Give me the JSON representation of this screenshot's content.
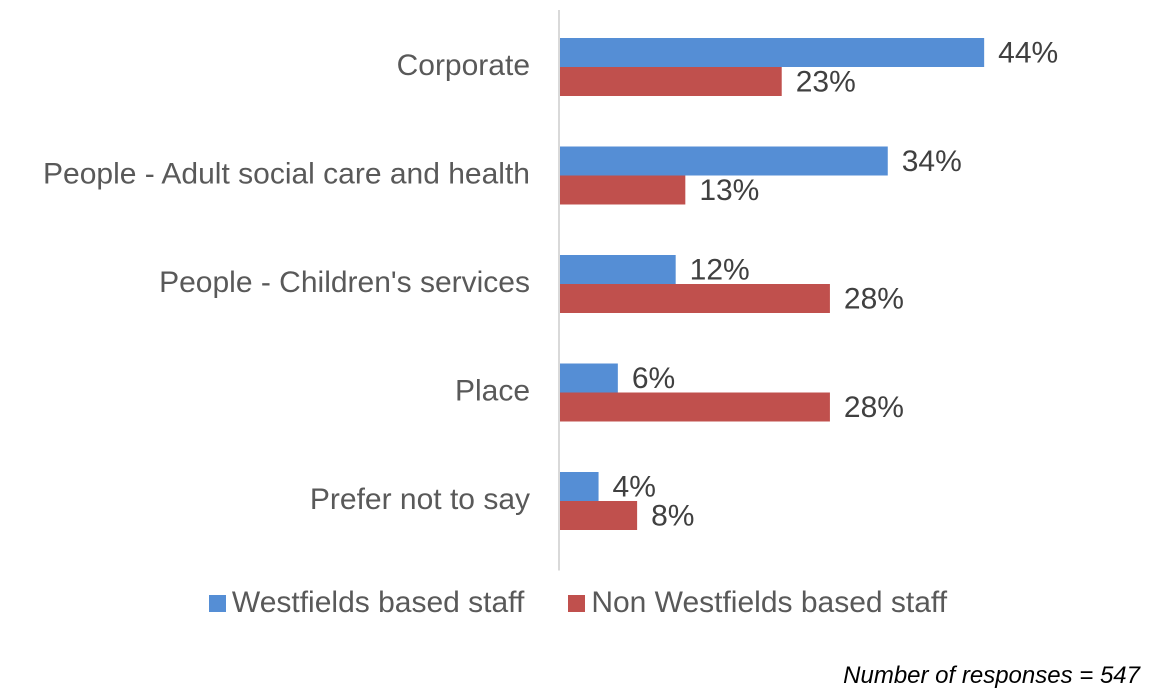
{
  "chart_data": {
    "type": "bar",
    "orientation": "horizontal",
    "categories": [
      "Corporate",
      "People - Adult social care and health",
      "People - Children's services",
      "Place",
      "Prefer not to say"
    ],
    "series": [
      {
        "name": "Westfields based staff",
        "values": [
          44,
          34,
          12,
          6,
          4
        ],
        "labels": [
          "44%",
          "34%",
          "12%",
          "6%",
          "4%"
        ],
        "color": "#558ED5"
      },
      {
        "name": "Non Westfields based staff",
        "values": [
          23,
          13,
          28,
          28,
          8
        ],
        "labels": [
          "23%",
          "13%",
          "28%",
          "28%",
          "8%"
        ],
        "color": "#C0504D"
      }
    ],
    "unit": "%",
    "xlim": [
      0,
      50
    ],
    "grid": false,
    "legend_position": "bottom"
  },
  "footnote": "Number of responses = 547"
}
